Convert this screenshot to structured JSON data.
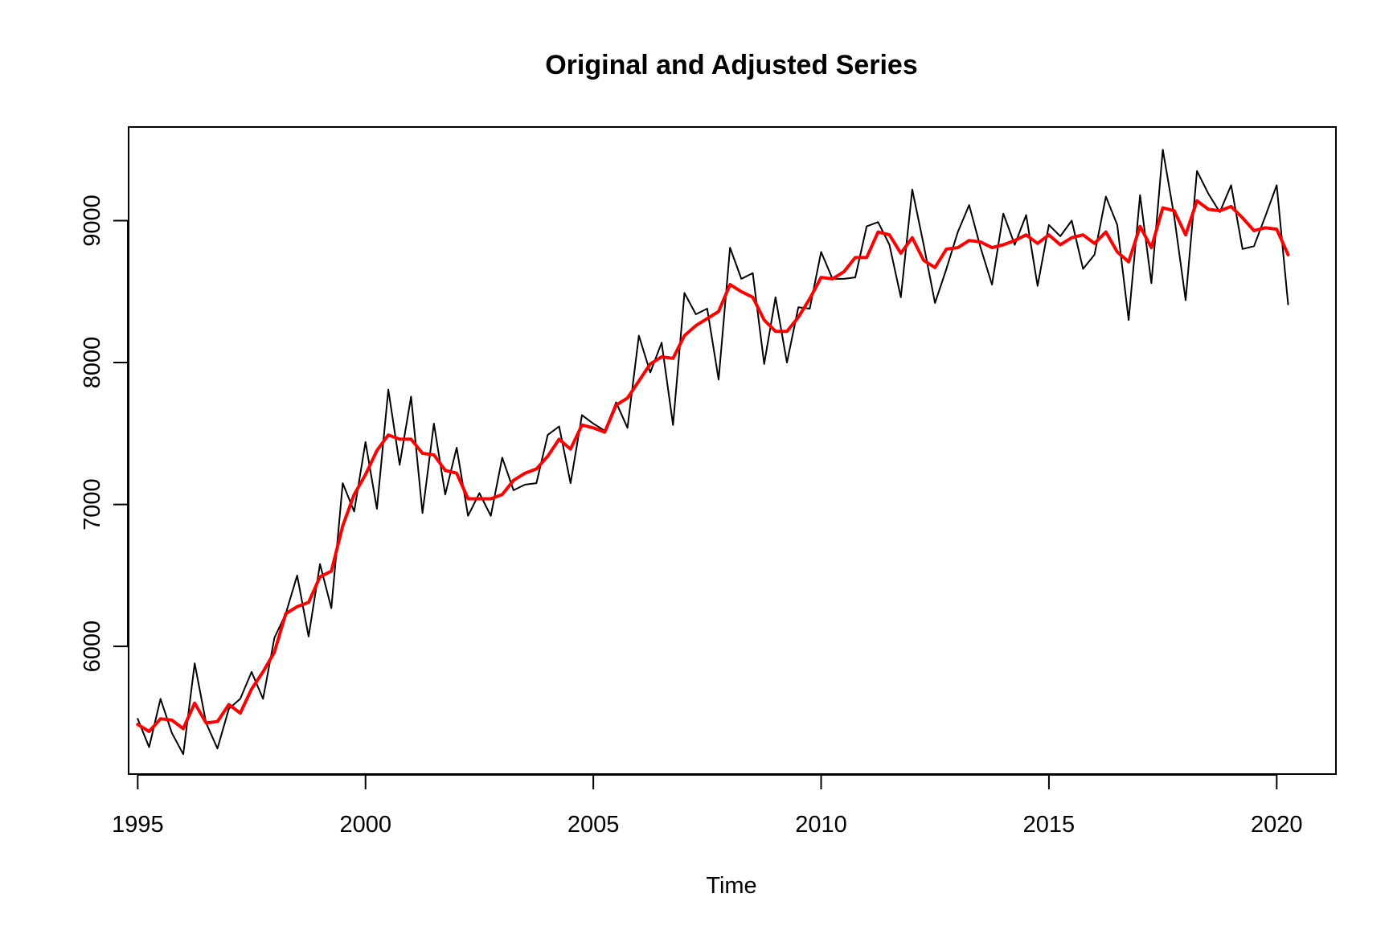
{
  "chart_data": {
    "type": "line",
    "title": "Original and Adjusted Series",
    "xlabel": "Time",
    "ylabel": "",
    "xlim": [
      1994.8,
      2021.3
    ],
    "ylim": [
      5100,
      9660
    ],
    "x_ticks": [
      1995,
      2000,
      2005,
      2010,
      2015,
      2020
    ],
    "y_ticks": [
      6000,
      7000,
      8000,
      9000
    ],
    "grid": false,
    "legend": "none",
    "x_start": 1995,
    "x_step": 0.25,
    "series": [
      {
        "color": "#000000",
        "values": [
          5490,
          5290,
          5630,
          5390,
          5240,
          5880,
          5460,
          5280,
          5560,
          5630,
          5820,
          5630,
          6060,
          6230,
          6500,
          6070,
          6580,
          6270,
          7150,
          6950,
          7440,
          6970,
          7810,
          7280,
          7760,
          6940,
          7570,
          7070,
          7400,
          6920,
          7080,
          6920,
          7330,
          7100,
          7140,
          7150,
          7490,
          7550,
          7150,
          7630,
          7570,
          7520,
          7720,
          7540,
          8190,
          7930,
          8140,
          7560,
          8490,
          8340,
          8380,
          7880,
          8810,
          8590,
          8630,
          7990,
          8460,
          8000,
          8390,
          8380,
          8780,
          8590,
          8590,
          8600,
          8960,
          8990,
          8830,
          8460,
          9220,
          8830,
          8420,
          8660,
          8920,
          9110,
          8810,
          8550,
          9050,
          8830,
          9040,
          8540,
          8970,
          8890,
          9000,
          8660,
          8760,
          9170,
          8970,
          8300,
          9180,
          8560,
          9500,
          9030,
          8440,
          9350,
          9190,
          9060,
          9250,
          8800,
          8820,
          9030,
          9250,
          8410
        ]
      },
      {
        "color": "#ff0000",
        "values": [
          5450,
          5400,
          5490,
          5480,
          5420,
          5600,
          5460,
          5470,
          5590,
          5530,
          5700,
          5820,
          5960,
          6230,
          6280,
          6310,
          6490,
          6530,
          6850,
          7070,
          7210,
          7380,
          7490,
          7460,
          7460,
          7360,
          7350,
          7240,
          7220,
          7040,
          7040,
          7040,
          7070,
          7170,
          7220,
          7250,
          7340,
          7460,
          7390,
          7560,
          7540,
          7510,
          7700,
          7750,
          7870,
          7990,
          8040,
          8030,
          8190,
          8260,
          8310,
          8360,
          8550,
          8500,
          8460,
          8300,
          8220,
          8220,
          8320,
          8450,
          8600,
          8590,
          8640,
          8740,
          8740,
          8920,
          8900,
          8770,
          8880,
          8720,
          8670,
          8800,
          8810,
          8860,
          8850,
          8810,
          8830,
          8860,
          8900,
          8840,
          8900,
          8830,
          8880,
          8900,
          8840,
          8920,
          8780,
          8710,
          8960,
          8810,
          9090,
          9070,
          8900,
          9140,
          9080,
          9070,
          9100,
          9020,
          8930,
          8950,
          8940,
          8760
        ]
      }
    ]
  }
}
